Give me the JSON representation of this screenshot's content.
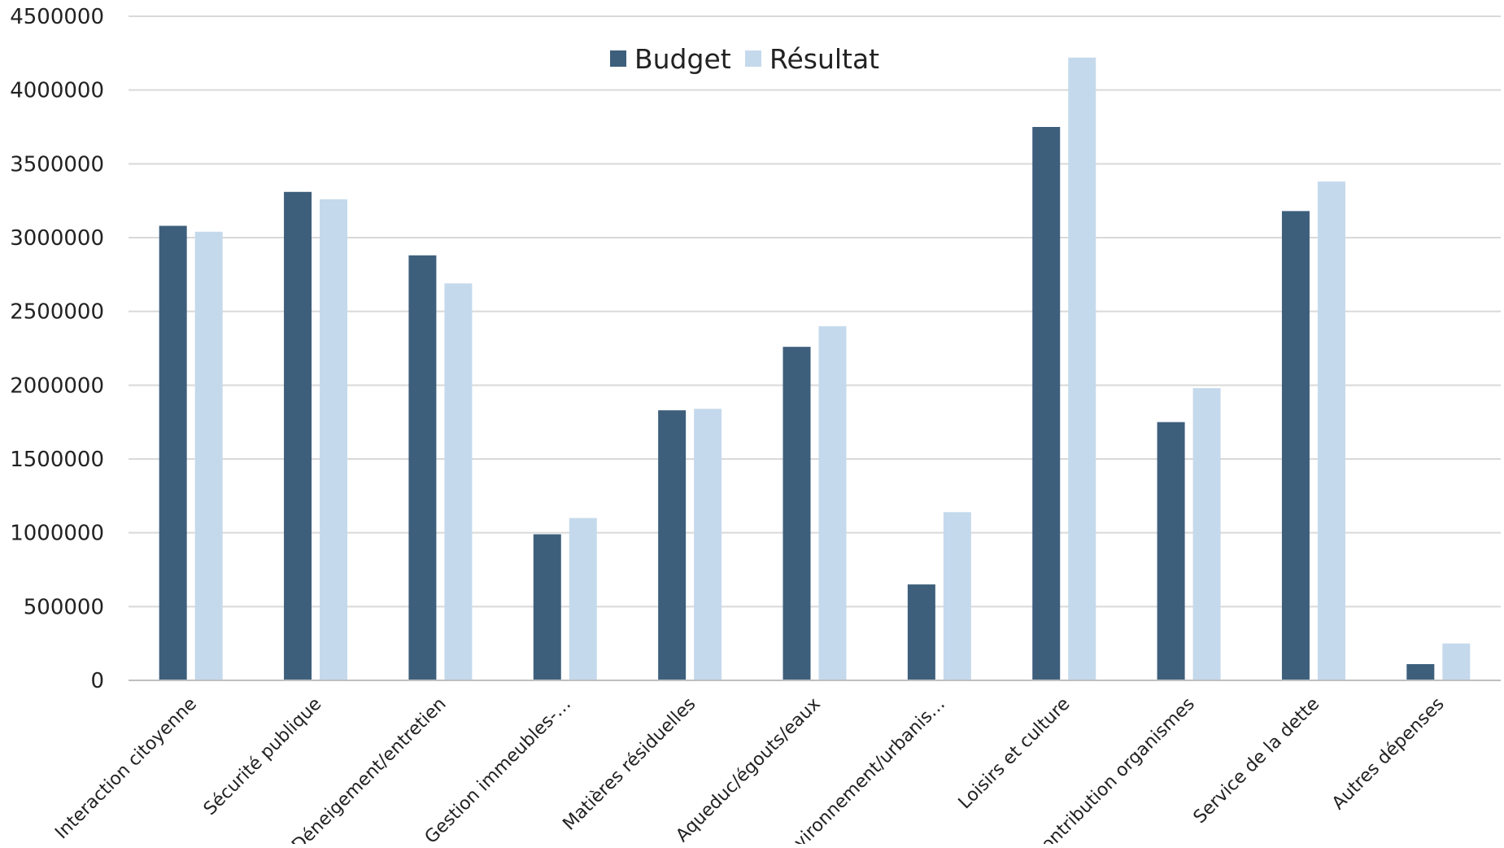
{
  "chart_data": {
    "type": "bar",
    "title": "",
    "xlabel": "",
    "ylabel": "",
    "ylim": [
      0,
      4500000
    ],
    "yticks": [
      0,
      500000,
      1000000,
      1500000,
      2000000,
      2500000,
      3000000,
      3500000,
      4000000,
      4500000
    ],
    "ytick_labels": [
      "0",
      "500000",
      "1000000",
      "1500000",
      "2000000",
      "2500000",
      "3000000",
      "3500000",
      "4000000",
      "4500000"
    ],
    "grid": true,
    "legend_position": "top-center",
    "categories": [
      "Interaction citoyenne",
      "Sécurité publique",
      "Déneigement/entretien",
      "Gestion immeubles-…",
      "Matières résiduelles",
      "Aqueduc/égouts/eaux",
      "Environnement/urbanis…",
      "Loisirs et culture",
      "Contribution organismes",
      "Service de la dette",
      "Autres dépenses"
    ],
    "series": [
      {
        "name": "Budget",
        "color": "#3d5f7c",
        "values": [
          3080000,
          3310000,
          2880000,
          990000,
          1830000,
          2260000,
          650000,
          3750000,
          1750000,
          3180000,
          110000
        ]
      },
      {
        "name": "Résultat",
        "color": "#c5d9ec",
        "values": [
          3040000,
          3260000,
          2690000,
          1100000,
          1840000,
          2400000,
          1140000,
          4220000,
          1980000,
          3380000,
          250000
        ]
      }
    ]
  }
}
